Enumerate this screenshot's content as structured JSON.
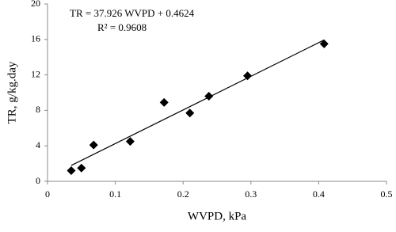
{
  "chart_data": {
    "type": "scatter",
    "x_label": "WVPD, kPa",
    "y_label": "TR, g/kg.day",
    "annotations": [
      "TR = 37.926 WVPD + 0.4624",
      "R² = 0.9608"
    ],
    "x": [
      0.035,
      0.05,
      0.068,
      0.122,
      0.172,
      0.21,
      0.238,
      0.295,
      0.408
    ],
    "values": [
      1.2,
      1.5,
      4.1,
      4.5,
      8.9,
      7.7,
      9.6,
      11.9,
      15.5
    ],
    "color": "#000000",
    "trendline": {
      "x": [
        0.035,
        0.408
      ],
      "values": [
        1.79,
        15.94
      ]
    },
    "xlim": [
      0,
      0.5
    ],
    "xticks": [
      0,
      0.1,
      0.2,
      0.3,
      0.4,
      0.5
    ],
    "ylim": [
      0,
      20
    ],
    "yticks": [
      0,
      4,
      8,
      12,
      16,
      20
    ],
    "grid": false
  }
}
